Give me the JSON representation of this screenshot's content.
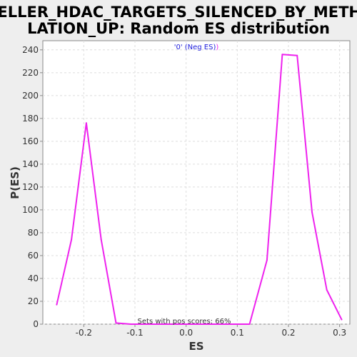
{
  "chart_data": {
    "type": "line",
    "title_lines": [
      "HELLER_HDAC_TARGETS_SILENCED_BY_METHY",
      "LATION_UP: Random ES distribution"
    ],
    "xlabel": "ES",
    "ylabel": "P(ES)",
    "xlim": [
      -0.28,
      0.32
    ],
    "ylim": [
      0,
      248
    ],
    "xticks": [
      -0.2,
      -0.1,
      0.0,
      0.1,
      0.2,
      0.3
    ],
    "xtick_labels": [
      "-0.2",
      "-0.1",
      "0.0",
      "0.1",
      "0.2",
      "0.3"
    ],
    "yticks": [
      0,
      20,
      40,
      60,
      80,
      100,
      120,
      140,
      160,
      180,
      200,
      220,
      240
    ],
    "ytick_labels": [
      "0",
      "20",
      "40",
      "60",
      "80",
      "100",
      "120",
      "140",
      "160",
      "180",
      "200",
      "220",
      "240"
    ],
    "grid": true,
    "legend": {
      "placement": "top-center",
      "open": "'0' (Neg ES)",
      "close": ")"
    },
    "annotation": "Sets with pos scores: 66%",
    "series": [
      {
        "color": "#ee22ee",
        "x": [
          -0.253,
          -0.224,
          -0.195,
          -0.166,
          -0.137,
          -0.108,
          -0.079,
          -0.05,
          -0.021,
          0.008,
          0.037,
          0.066,
          0.095,
          0.124,
          0.158,
          0.188,
          0.217,
          0.246,
          0.275,
          0.304
        ],
        "y": [
          17,
          74,
          176,
          74,
          1,
          0,
          0,
          0,
          0,
          0,
          0,
          0,
          0,
          0,
          56,
          236,
          235,
          98,
          30,
          4
        ]
      }
    ]
  }
}
